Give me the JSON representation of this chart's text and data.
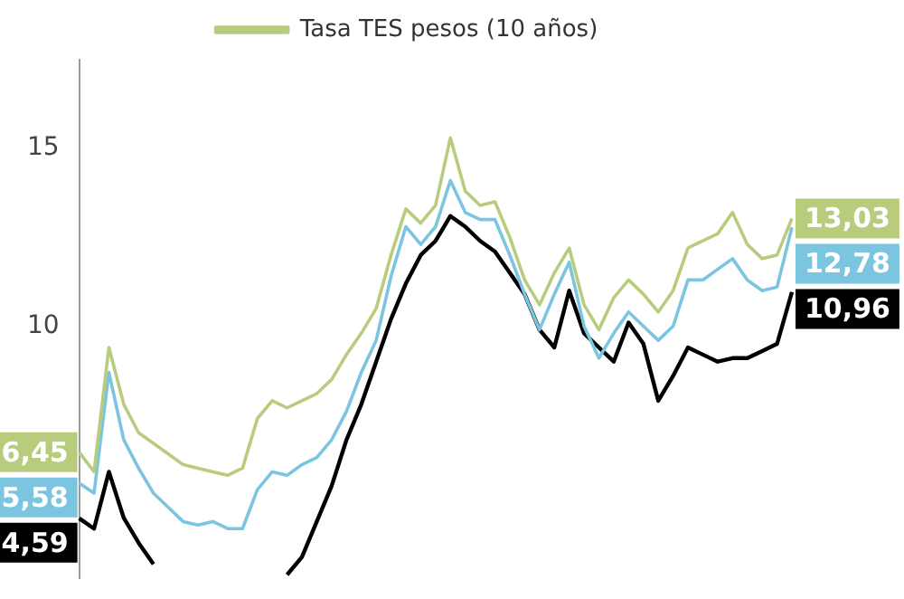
{
  "chart_data": {
    "type": "line",
    "tick_labels": "y",
    "legend": "top",
    "grid": false,
    "marker": "none",
    "line_style": "solid",
    "categories": [
      null,
      null,
      null,
      null,
      null,
      null,
      null,
      null,
      null,
      null,
      null,
      null,
      null,
      null,
      null,
      null,
      null,
      null,
      null,
      null,
      null,
      null,
      null,
      null,
      null,
      null,
      null,
      null,
      null,
      null,
      null,
      null,
      null,
      null,
      null,
      null,
      null,
      null,
      null,
      null,
      null,
      null,
      null,
      null,
      null,
      null,
      null,
      null,
      null
    ],
    "ylim": [
      2.9,
      17.5
    ],
    "yticks": [
      10,
      15
    ],
    "series": [
      {
        "name": "Tasa TES pesos (10 años)",
        "color": "#b8cc7e",
        "values": [
          6.45,
          5.9,
          9.4,
          7.8,
          7.0,
          6.7,
          6.4,
          6.1,
          6.0,
          5.9,
          5.8,
          6.0,
          7.4,
          7.9,
          7.7,
          7.9,
          8.1,
          8.5,
          9.2,
          9.8,
          10.5,
          12.0,
          13.3,
          12.9,
          13.4,
          15.3,
          13.8,
          13.4,
          13.5,
          12.5,
          11.3,
          10.6,
          11.5,
          12.2,
          10.6,
          9.9,
          10.8,
          11.3,
          10.9,
          10.4,
          11.0,
          12.2,
          12.4,
          12.6,
          13.2,
          12.3,
          11.9,
          12.0,
          13.03
        ],
        "value_labels": [
          "6,45",
          null,
          null,
          null,
          null,
          null,
          null,
          null,
          null,
          null,
          null,
          null,
          null,
          null,
          null,
          null,
          null,
          null,
          null,
          null,
          null,
          null,
          null,
          null,
          null,
          null,
          null,
          null,
          null,
          null,
          null,
          null,
          null,
          null,
          null,
          null,
          null,
          null,
          null,
          null,
          null,
          null,
          null,
          null,
          null,
          null,
          null,
          null,
          "13,03"
        ]
      },
      {
        "color": "#7cc5e0",
        "values": [
          5.58,
          5.3,
          8.7,
          6.8,
          6.0,
          5.3,
          4.9,
          4.5,
          4.4,
          4.5,
          4.3,
          4.3,
          5.4,
          5.9,
          5.8,
          6.1,
          6.3,
          6.8,
          7.6,
          8.7,
          9.6,
          11.4,
          12.8,
          12.3,
          12.8,
          14.1,
          13.2,
          13.0,
          13.0,
          12.0,
          10.9,
          9.9,
          10.9,
          11.8,
          10.0,
          9.1,
          9.8,
          10.4,
          10.0,
          9.6,
          10.0,
          11.3,
          11.3,
          11.6,
          11.9,
          11.3,
          11.0,
          11.1,
          12.78
        ],
        "value_labels": [
          "5,58",
          null,
          null,
          null,
          null,
          null,
          null,
          null,
          null,
          null,
          null,
          null,
          null,
          null,
          null,
          null,
          null,
          null,
          null,
          null,
          null,
          null,
          null,
          null,
          null,
          null,
          null,
          null,
          null,
          null,
          null,
          null,
          null,
          null,
          null,
          null,
          null,
          null,
          null,
          null,
          null,
          null,
          null,
          null,
          null,
          null,
          null,
          null,
          "12,78"
        ]
      },
      {
        "color": "#000000",
        "values": [
          4.59,
          4.3,
          5.9,
          4.6,
          3.9,
          3.3,
          null,
          null,
          null,
          null,
          null,
          null,
          null,
          null,
          3.0,
          3.5,
          4.5,
          5.5,
          6.8,
          7.8,
          9.0,
          10.2,
          11.2,
          12.0,
          12.4,
          13.1,
          12.8,
          12.4,
          12.1,
          11.5,
          10.9,
          9.9,
          9.4,
          11.0,
          9.8,
          9.4,
          9.0,
          10.1,
          9.5,
          7.9,
          8.6,
          9.4,
          9.2,
          9.0,
          9.1,
          9.1,
          9.3,
          9.5,
          10.96
        ],
        "value_labels": [
          "4,59",
          null,
          null,
          null,
          null,
          null,
          null,
          null,
          null,
          null,
          null,
          null,
          null,
          null,
          null,
          null,
          null,
          null,
          null,
          null,
          null,
          null,
          null,
          null,
          null,
          null,
          null,
          null,
          null,
          null,
          null,
          null,
          null,
          null,
          null,
          null,
          null,
          null,
          null,
          null,
          null,
          null,
          null,
          null,
          null,
          null,
          null,
          null,
          "10,96"
        ]
      }
    ]
  }
}
